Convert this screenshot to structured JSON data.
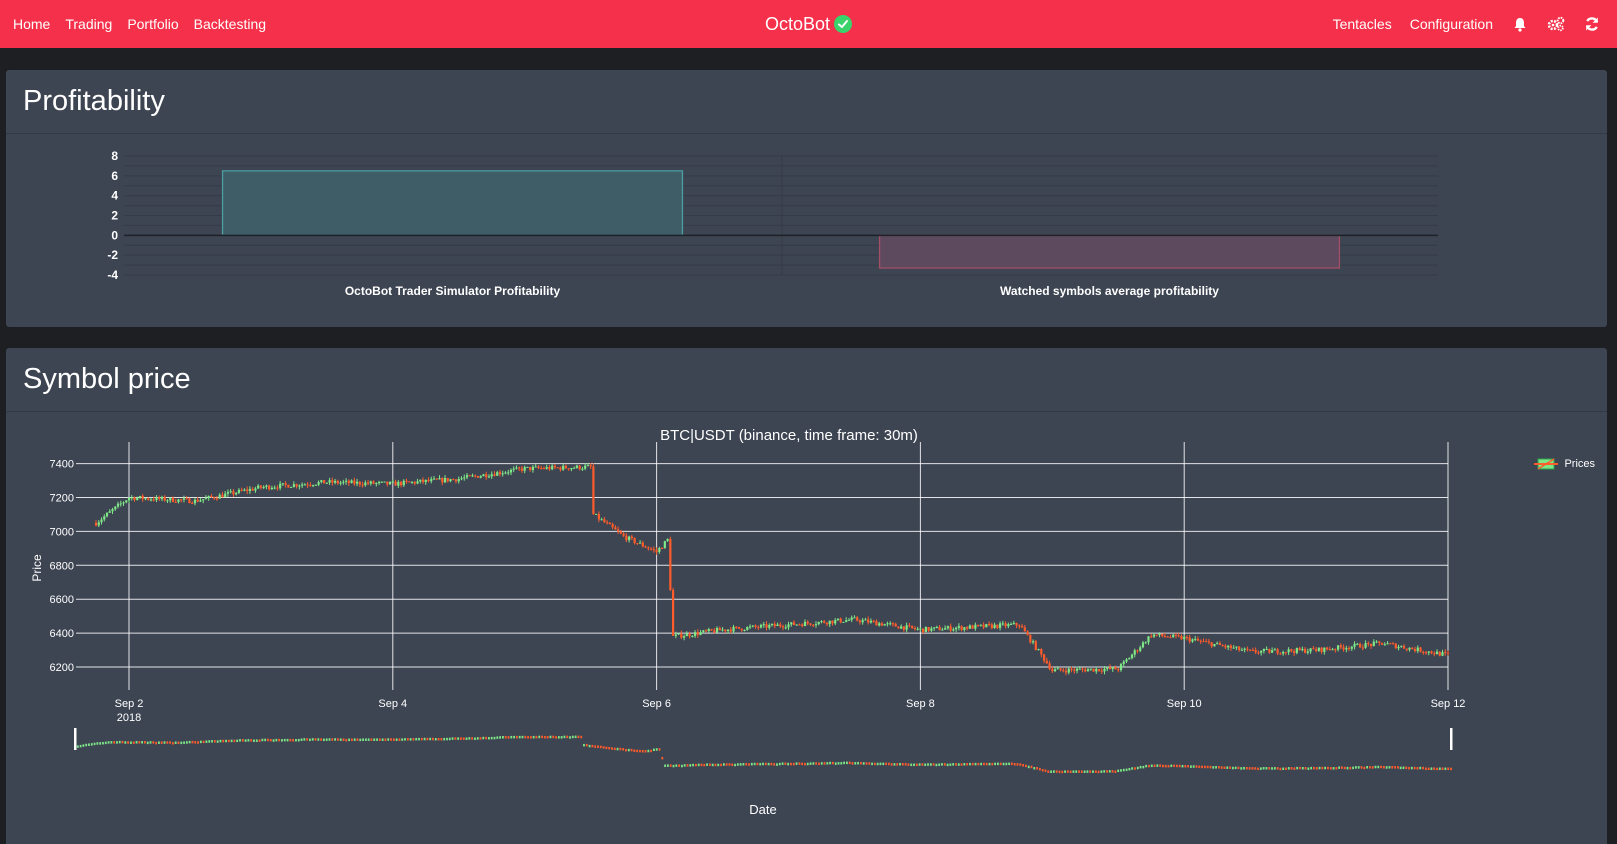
{
  "nav": {
    "left": [
      "Home",
      "Trading",
      "Portfolio",
      "Backtesting"
    ],
    "brand": "OctoBot",
    "brand_status_icon": "check-circle-icon",
    "right": [
      "Tentacles",
      "Configuration"
    ],
    "right_icons": [
      "bell-icon",
      "gears-icon",
      "refresh-icon"
    ]
  },
  "colors": {
    "navbar": "#f5304a",
    "card": "#3d4452",
    "increasing": "#7ee787",
    "decreasing": "#ff5c2b",
    "profit_positive": "#3fa0a3",
    "profit_negative": "#b9546a"
  },
  "profitability": {
    "title": "Profitability"
  },
  "symbol_price": {
    "title": "Symbol price",
    "legend": "Prices"
  },
  "chart_data": [
    {
      "type": "bar",
      "title": "",
      "categories": [
        "OctoBot Trader Simulator Profitability",
        "Watched symbols average profitability"
      ],
      "values": [
        6.5,
        -3.3
      ],
      "ylim": [
        -4,
        8
      ],
      "yticks": [
        "8",
        "6",
        "4",
        "2",
        "0",
        "-2",
        "-4"
      ],
      "xlabel": "",
      "ylabel": "",
      "grid": true
    },
    {
      "type": "line",
      "subtype": "candlestick",
      "title": "BTC|USDT (binance, time frame: 30m)",
      "xlabel": "Date",
      "ylabel": "Price",
      "x": [
        "2018-09-01T18:00",
        "2018-09-02T00:00",
        "2018-09-02T12:00",
        "2018-09-03T00:00",
        "2018-09-03T12:00",
        "2018-09-04T00:00",
        "2018-09-04T12:00",
        "2018-09-05T00:00",
        "2018-09-05T12:00",
        "2018-09-05T12:30",
        "2018-09-05T18:00",
        "2018-09-06T00:00",
        "2018-09-06T02:00",
        "2018-09-06T03:00",
        "2018-09-06T12:00",
        "2018-09-07T00:00",
        "2018-09-07T12:00",
        "2018-09-08T00:00",
        "2018-09-08T12:00",
        "2018-09-08T18:00",
        "2018-09-09T00:00",
        "2018-09-09T12:00",
        "2018-09-09T18:00",
        "2018-09-10T00:00",
        "2018-09-10T12:00",
        "2018-09-11T00:00",
        "2018-09-11T12:00",
        "2018-09-12T00:00"
      ],
      "values": [
        7050,
        7200,
        7180,
        7260,
        7290,
        7280,
        7310,
        7370,
        7380,
        7100,
        6970,
        6880,
        6950,
        6380,
        6420,
        6450,
        6480,
        6420,
        6440,
        6450,
        6180,
        6190,
        6390,
        6370,
        6290,
        6300,
        6340,
        6270
      ],
      "series": [
        {
          "name": "Prices"
        }
      ],
      "yticks": [
        "7400",
        "7200",
        "7000",
        "6800",
        "6600",
        "6400",
        "6200"
      ],
      "xticks": [
        "Sep 2",
        "Sep 4",
        "Sep 6",
        "Sep 8",
        "Sep 10",
        "Sep 12"
      ],
      "xtick_sub": "2018",
      "ylim": [
        6100,
        7480
      ],
      "grid": true,
      "legend": "top-right",
      "rangeslider": true
    }
  ]
}
